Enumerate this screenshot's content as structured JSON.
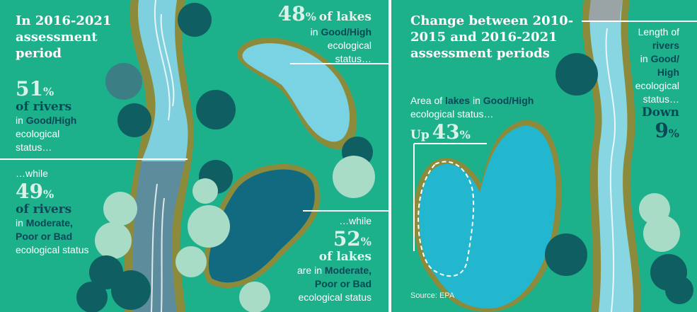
{
  "left_panel": {
    "title": "In 2016-2021 assessment period",
    "rivers_good": {
      "value": "51",
      "unit": "%",
      "subject": "of rivers",
      "prep": "in",
      "status": "Good/High",
      "suffix": "ecological status…"
    },
    "rivers_bad": {
      "lead": "…while",
      "value": "49",
      "unit": "%",
      "subject": "of rivers",
      "prep": "in",
      "status": "Moderate, Poor or Bad",
      "suffix": "ecological status"
    },
    "lakes_good": {
      "value": "48",
      "unit": "%",
      "subject": "of lakes",
      "prep": "in",
      "status": "Good/High",
      "suffix": "ecological status…"
    },
    "lakes_bad": {
      "lead": "…while",
      "value": "52",
      "unit": "%",
      "subject": "of lakes",
      "prep": "are in",
      "status": "Moderate, Poor or Bad",
      "suffix": "ecological status"
    }
  },
  "right_panel": {
    "title": "Change between 2010-2015 and 2016-2021 assessment periods",
    "lakes_change": {
      "lead": "Area of",
      "subject": "lakes",
      "prep": "in",
      "status": "Good/High",
      "suffix": "ecological status…",
      "direction": "Up",
      "value": "43",
      "unit": "%"
    },
    "rivers_change": {
      "lead": "Length of",
      "subject": "rivers",
      "prep": "in",
      "status": "Good/ High",
      "suffix": "ecological status…",
      "direction": "Down",
      "value": "9",
      "unit": "%"
    },
    "source": "Source: EPA"
  }
}
